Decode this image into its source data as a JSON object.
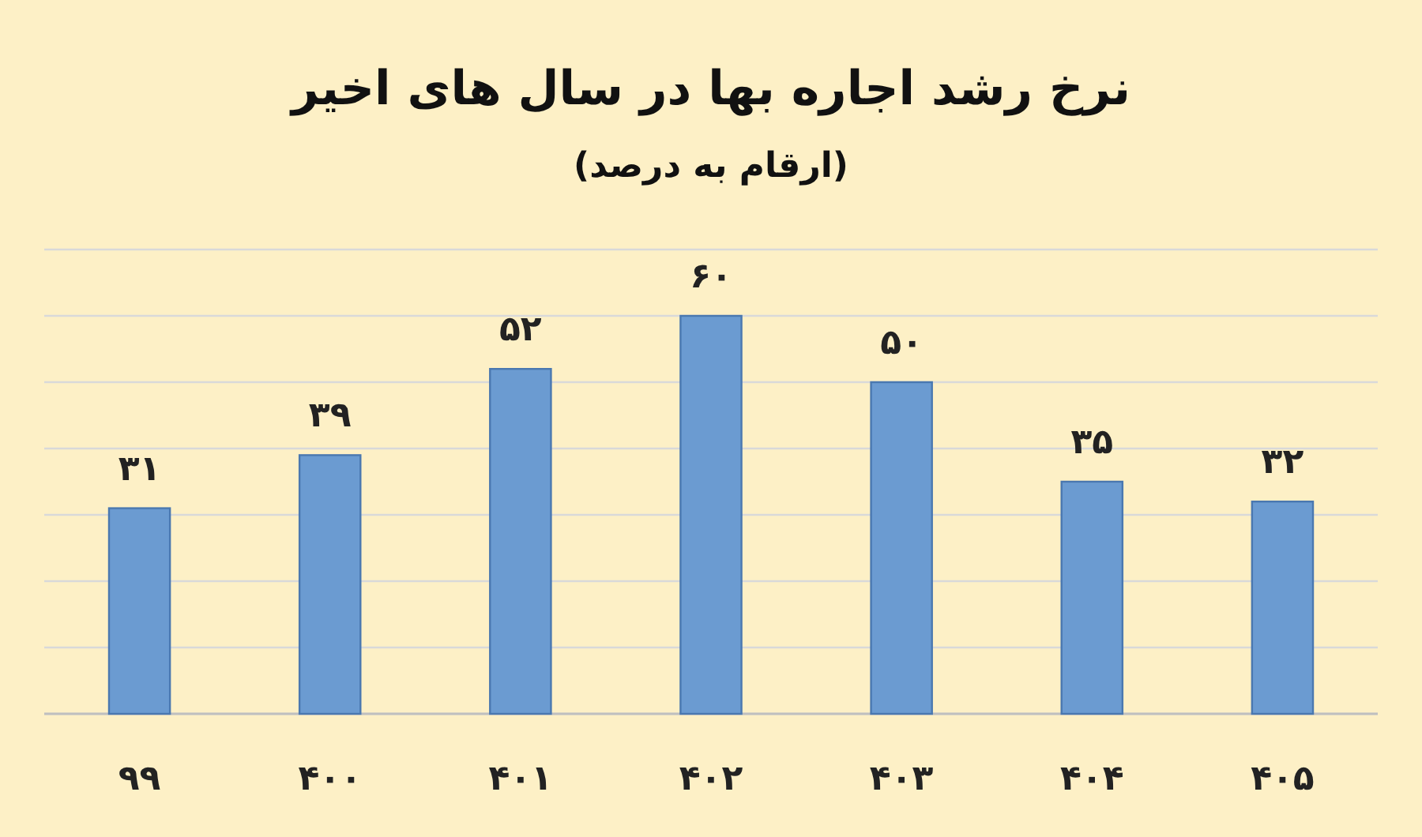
{
  "chart_data": {
    "type": "bar",
    "title": "نرخ رشد اجاره بها در سال های اخیر",
    "subtitle": "(ارقام به درصد)",
    "categories": [
      "۹۹",
      "۴۰۰",
      "۴۰۱",
      "۴۰۲",
      "۴۰۳",
      "۴۰۴",
      "۴۰۵"
    ],
    "values": [
      31,
      39,
      52,
      60,
      50,
      35,
      32
    ],
    "value_labels": [
      "۳۱",
      "۳۹",
      "۵۲",
      "۶۰",
      "۵۰",
      "۳۵",
      "۳۲"
    ],
    "color": "#6b9bd1",
    "ylim": [
      0,
      70
    ],
    "yticks": [
      {
        "value": 0,
        "label": null
      },
      {
        "value": 10,
        "label": null
      },
      {
        "value": 20,
        "label": null
      },
      {
        "value": 30,
        "label": null
      },
      {
        "value": 40,
        "label": null
      },
      {
        "value": 50,
        "label": null
      },
      {
        "value": 60,
        "label": null
      },
      {
        "value": 70,
        "label": null
      }
    ],
    "tick_labels": "x",
    "grid": "y"
  }
}
